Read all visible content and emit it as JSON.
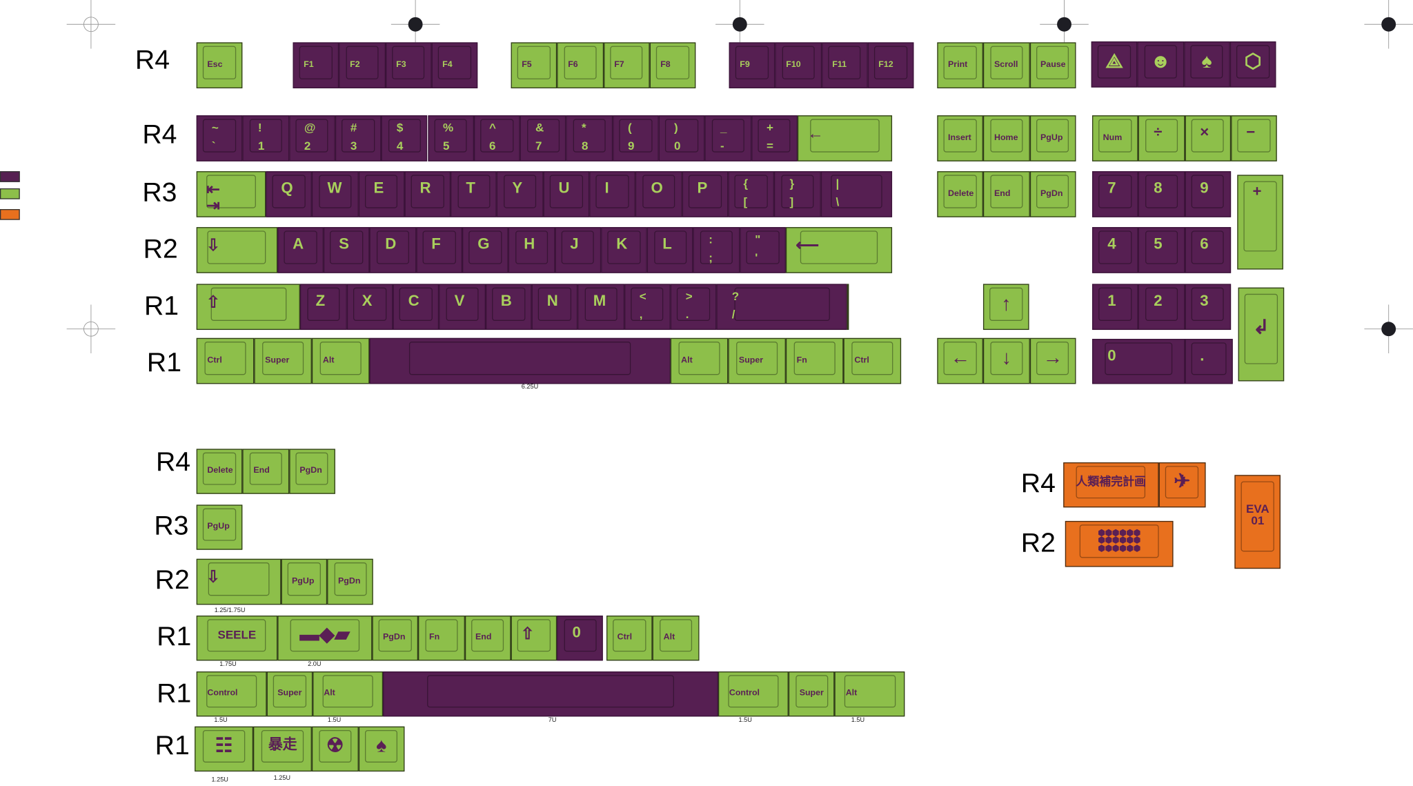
{
  "colors": {
    "purple": "#561f52",
    "green": "#8dbf4a",
    "orange": "#e8701e",
    "legend_on_purple": "#a9cf5c",
    "legend_on_light": "#5a1f55"
  },
  "legend_swatches": [
    "purple",
    "green",
    "orange"
  ],
  "row_labels_main": [
    "R4",
    "R4",
    "R3",
    "R2",
    "R1",
    "R1"
  ],
  "row_labels_extra": [
    "R4",
    "R3",
    "R2",
    "R1",
    "R1",
    "R1"
  ],
  "row_labels_novelty": [
    "R4",
    "R2"
  ],
  "size_notes": [
    "6.25U",
    "1.25/1.75U",
    "1.75U",
    "2.0U",
    "1.5U",
    "1.5U",
    "7U",
    "1.5U",
    "1.5U",
    "1.25U",
    "1.25U"
  ],
  "groups": {
    "esc": [
      {
        "t": "Esc",
        "c": "g"
      }
    ],
    "f1_4": [
      {
        "t": "F1",
        "c": "p"
      },
      {
        "t": "F2",
        "c": "p"
      },
      {
        "t": "F3",
        "c": "p"
      },
      {
        "t": "F4",
        "c": "p"
      }
    ],
    "f5_8": [
      {
        "t": "F5",
        "c": "g"
      },
      {
        "t": "F6",
        "c": "g"
      },
      {
        "t": "F7",
        "c": "g"
      },
      {
        "t": "F8",
        "c": "g"
      }
    ],
    "f9_12": [
      {
        "t": "F9",
        "c": "p"
      },
      {
        "t": "F10",
        "c": "p"
      },
      {
        "t": "F11",
        "c": "p"
      },
      {
        "t": "F12",
        "c": "p"
      }
    ],
    "sys": [
      {
        "t": "Print",
        "c": "g"
      },
      {
        "t": "Scroll",
        "c": "g"
      },
      {
        "t": "Pause",
        "c": "g"
      }
    ],
    "novelty_icons": [
      {
        "i": "nerv-pyramid-icon",
        "c": "p"
      },
      {
        "i": "angel-mask-icon",
        "c": "p"
      },
      {
        "i": "eva-head-icon",
        "c": "p"
      },
      {
        "i": "hexagon-emblem-icon",
        "c": "p"
      }
    ],
    "number_row": [
      {
        "t": "~",
        "b": "`",
        "c": "p"
      },
      {
        "t": "!",
        "b": "1",
        "c": "p"
      },
      {
        "t": "@",
        "b": "2",
        "c": "p"
      },
      {
        "t": "#",
        "b": "3",
        "c": "p"
      },
      {
        "t": "$",
        "b": "4",
        "c": "p"
      },
      {
        "t": "%",
        "b": "5",
        "c": "p"
      },
      {
        "t": "^",
        "b": "6",
        "c": "p"
      },
      {
        "t": "&",
        "b": "7",
        "c": "p"
      },
      {
        "t": "*",
        "b": "8",
        "c": "p"
      },
      {
        "t": "(",
        "b": "9",
        "c": "p"
      },
      {
        "t": ")",
        "b": "0",
        "c": "p"
      },
      {
        "t": "_",
        "b": "-",
        "c": "p"
      },
      {
        "t": "+",
        "b": "=",
        "c": "p"
      },
      {
        "i": "backspace-arrow-icon",
        "c": "g"
      }
    ],
    "qwerty_row": [
      {
        "i": "tab-icon",
        "c": "g"
      },
      {
        "t": "Q",
        "c": "p"
      },
      {
        "t": "W",
        "c": "p"
      },
      {
        "t": "E",
        "c": "p"
      },
      {
        "t": "R",
        "c": "p"
      },
      {
        "t": "T",
        "c": "p"
      },
      {
        "t": "Y",
        "c": "p"
      },
      {
        "t": "U",
        "c": "p"
      },
      {
        "t": "I",
        "c": "p"
      },
      {
        "t": "O",
        "c": "p"
      },
      {
        "t": "P",
        "c": "p"
      },
      {
        "t": "{",
        "b": "[",
        "c": "p"
      },
      {
        "t": "}",
        "b": "]",
        "c": "p"
      },
      {
        "t": "|",
        "b": "\\",
        "c": "p"
      }
    ],
    "home_row": [
      {
        "i": "caps-lock-arrow-icon",
        "c": "g"
      },
      {
        "t": "A",
        "c": "p"
      },
      {
        "t": "S",
        "c": "p"
      },
      {
        "t": "D",
        "c": "p"
      },
      {
        "t": "F",
        "c": "p"
      },
      {
        "t": "G",
        "c": "p"
      },
      {
        "t": "H",
        "c": "p"
      },
      {
        "t": "J",
        "c": "p"
      },
      {
        "t": "K",
        "c": "p"
      },
      {
        "t": "L",
        "c": "p"
      },
      {
        "t": ":",
        "b": ";",
        "c": "p"
      },
      {
        "t": "\"",
        "b": "'",
        "c": "p"
      },
      {
        "i": "enter-arrow-icon",
        "c": "g"
      }
    ],
    "shift_row": [
      {
        "i": "shift-arrow-icon",
        "c": "g"
      },
      {
        "t": "Z",
        "c": "p"
      },
      {
        "t": "X",
        "c": "p"
      },
      {
        "t": "C",
        "c": "p"
      },
      {
        "t": "V",
        "c": "p"
      },
      {
        "t": "B",
        "c": "p"
      },
      {
        "t": "N",
        "c": "p"
      },
      {
        "t": "M",
        "c": "p"
      },
      {
        "t": "<",
        "b": ",",
        "c": "p"
      },
      {
        "t": ">",
        "b": ".",
        "c": "p"
      },
      {
        "t": "?",
        "b": "/",
        "c": "p"
      },
      {
        "i": "shift-arrow-icon",
        "c": "g"
      }
    ],
    "bottom_row": [
      {
        "t": "Ctrl",
        "c": "g"
      },
      {
        "t": "Super",
        "c": "g"
      },
      {
        "t": "Alt",
        "c": "g"
      },
      {
        "c": "p"
      },
      {
        "t": "Alt",
        "c": "g"
      },
      {
        "t": "Super",
        "c": "g"
      },
      {
        "t": "Fn",
        "c": "g"
      },
      {
        "t": "Ctrl",
        "c": "g"
      }
    ],
    "nav_top": [
      {
        "t": "Insert",
        "c": "g"
      },
      {
        "t": "Home",
        "c": "g"
      },
      {
        "t": "PgUp",
        "c": "g"
      }
    ],
    "nav_bottom": [
      {
        "t": "Delete",
        "c": "g"
      },
      {
        "t": "End",
        "c": "g"
      },
      {
        "t": "PgDn",
        "c": "g"
      }
    ],
    "arrow_up": [
      {
        "i": "up-arrow-icon",
        "c": "g"
      }
    ],
    "arrows": [
      {
        "i": "left-arrow-icon",
        "c": "g"
      },
      {
        "i": "down-arrow-icon",
        "c": "g"
      },
      {
        "i": "right-arrow-icon",
        "c": "g"
      }
    ],
    "numpad_top": [
      {
        "t": "Num",
        "c": "g"
      },
      {
        "t": "÷",
        "c": "g"
      },
      {
        "t": "×",
        "c": "g"
      },
      {
        "t": "−",
        "c": "g"
      }
    ],
    "numpad_789": [
      {
        "t": "7",
        "c": "p"
      },
      {
        "t": "8",
        "c": "p"
      },
      {
        "t": "9",
        "c": "p"
      }
    ],
    "numpad_456": [
      {
        "t": "4",
        "c": "p"
      },
      {
        "t": "5",
        "c": "p"
      },
      {
        "t": "6",
        "c": "p"
      }
    ],
    "numpad_123": [
      {
        "t": "1",
        "c": "p"
      },
      {
        "t": "2",
        "c": "p"
      },
      {
        "t": "3",
        "c": "p"
      }
    ],
    "numpad_0": [
      {
        "t": "0",
        "c": "p"
      },
      {
        "t": ".",
        "c": "p"
      }
    ],
    "numpad_plus": [
      {
        "t": "+",
        "c": "g"
      }
    ],
    "numpad_enter": [
      {
        "i": "numpad-enter-arrow-icon",
        "c": "g"
      }
    ],
    "extra_r4": [
      {
        "t": "Delete",
        "c": "g"
      },
      {
        "t": "End",
        "c": "g"
      },
      {
        "t": "PgDn",
        "c": "g"
      }
    ],
    "extra_r3": [
      {
        "t": "PgUp",
        "c": "g"
      }
    ],
    "extra_r2": [
      {
        "i": "caps-lock-arrow-icon",
        "c": "g"
      },
      {
        "t": "PgUp",
        "c": "g"
      },
      {
        "t": "PgDn",
        "c": "g"
      }
    ],
    "extra_r1a": [
      {
        "i": "seele-logo-icon",
        "logo": "SEELE",
        "c": "g"
      },
      {
        "i": "lance-icon",
        "c": "g"
      },
      {
        "t": "PgDn",
        "c": "g"
      },
      {
        "t": "Fn",
        "c": "g"
      },
      {
        "t": "End",
        "c": "g"
      },
      {
        "i": "shift-arrow-icon",
        "c": "g"
      },
      {
        "t": "0",
        "c": "p"
      }
    ],
    "extra_r1b": [
      {
        "t": "Ctrl",
        "c": "g"
      },
      {
        "t": "Alt",
        "c": "g"
      }
    ],
    "extra_r1c": [
      {
        "t": "Control",
        "c": "g"
      },
      {
        "t": "Super",
        "c": "g"
      },
      {
        "t": "Alt",
        "c": "g"
      },
      {
        "c": "p"
      },
      {
        "t": "Control",
        "c": "g"
      },
      {
        "t": "Super",
        "c": "g"
      },
      {
        "t": "Alt",
        "c": "g"
      }
    ],
    "extra_r1d": [
      {
        "i": "kanji-emblem-icon",
        "c": "g"
      },
      {
        "i": "kanji-berserk-icon",
        "logo": "暴走",
        "c": "g"
      },
      {
        "i": "radiation-emblem-icon",
        "c": "g"
      },
      {
        "i": "eva-head-icon",
        "c": "g"
      }
    ],
    "orange_r4": [
      {
        "i": "instrumentality-project-icon",
        "logo": "人類補完計画",
        "c": "o"
      },
      {
        "i": "angel-icon",
        "c": "o"
      }
    ],
    "orange_r2": [
      {
        "i": "honeycomb-icon",
        "c": "o"
      }
    ],
    "orange_eva": [
      {
        "i": "eva-01-icon",
        "logo": "EVA 01",
        "c": "o"
      }
    ]
  }
}
